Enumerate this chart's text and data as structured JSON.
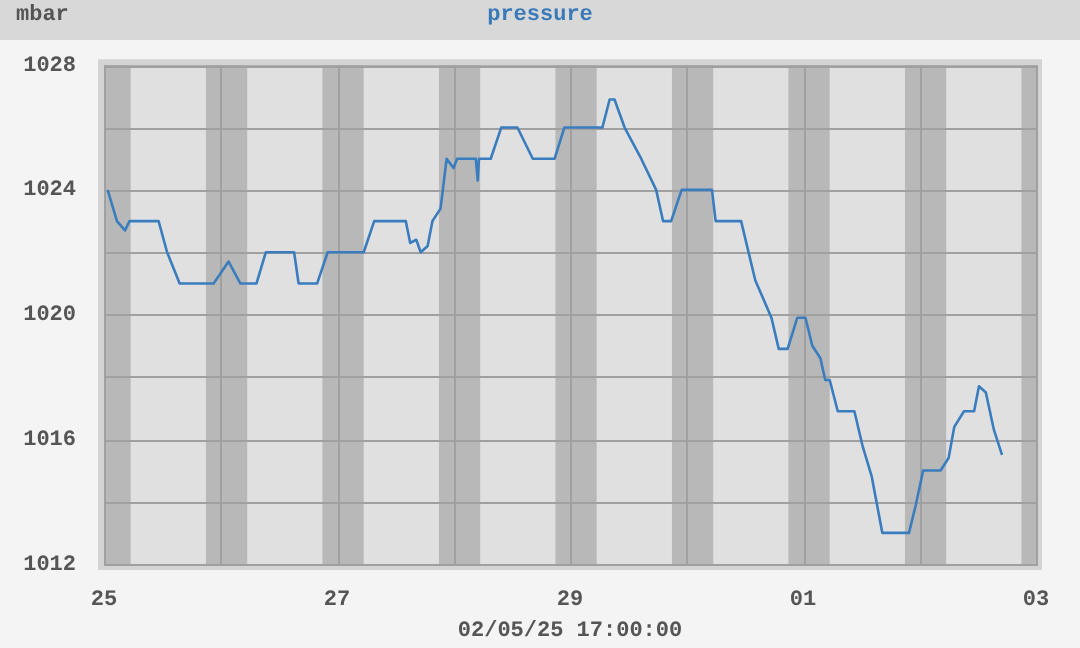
{
  "chart_data": {
    "type": "line",
    "title": "pressure",
    "ylabel": "mbar",
    "annotations": [
      "02/05/25 17:00:00"
    ],
    "legend": false,
    "marker": "none",
    "grid": true,
    "x": [
      "--04-25T00:45",
      "--04-25T02:40",
      "--04-25T04:20",
      "--04-25T05:15",
      "--04-25T11:15",
      "--04-25T13:00",
      "--04-25T15:35",
      "--04-25T22:35",
      "--04-26T01:40",
      "--04-26T04:05",
      "--04-26T07:25",
      "--04-26T09:20",
      "--04-26T15:10",
      "--04-26T16:05",
      "--04-26T19:55",
      "--04-26T22:05",
      "--04-27T05:30",
      "--04-27T07:40",
      "--04-27T14:10",
      "--04-27T15:05",
      "--04-27T16:20",
      "--04-27T17:15",
      "--04-27T18:40",
      "--04-27T19:40",
      "--04-27T21:20",
      "--04-27T22:35",
      "--04-28T00:00",
      "--04-28T00:45",
      "--04-28T04:35",
      "--04-28T05:00",
      "--04-28T05:15",
      "--04-28T07:40",
      "--04-28T09:50",
      "--04-28T13:10",
      "--04-28T16:20",
      "--04-28T20:50",
      "--04-28T22:50",
      "--04-29T06:40",
      "--04-29T08:10",
      "--04-29T09:10",
      "--04-29T11:15",
      "--04-29T14:40",
      "--04-29T17:45",
      "--04-29T19:10",
      "--04-29T20:50",
      "--04-29T23:00",
      "--04-30T05:15",
      "--04-30T06:00",
      "--04-30T11:15",
      "--04-30T14:10",
      "--04-30T17:30",
      "--04-30T19:00",
      "--04-30T20:50",
      "--04-30T22:50",
      "--05-01T00:30",
      "--05-01T01:55",
      "--05-01T03:35",
      "--05-01T04:35",
      "--05-01T05:30",
      "--05-01T07:10",
      "--05-01T10:35",
      "--05-01T12:15",
      "--05-01T14:10",
      "--05-01T16:20",
      "--05-01T21:50",
      "--05-01T23:15",
      "--05-02T00:45",
      "--05-02T04:20",
      "--05-02T06:00",
      "--05-02T07:10",
      "--05-02T09:10",
      "--05-02T11:15",
      "--05-02T12:15",
      "--05-02T13:40",
      "--05-02T15:20",
      "--05-02T17:00"
    ],
    "series": [
      {
        "color": "#3a7dbf",
        "values": [
          1024,
          1023,
          1022.7,
          1023,
          1023,
          1022,
          1021,
          1021,
          1021.7,
          1021,
          1021,
          1022,
          1022,
          1021,
          1021,
          1022,
          1022,
          1023,
          1023,
          1022.3,
          1022.4,
          1022,
          1022.2,
          1023,
          1023.4,
          1025,
          1024.7,
          1025,
          1025,
          1024.3,
          1025,
          1025,
          1026,
          1026,
          1025,
          1025,
          1026,
          1026,
          1026.9,
          1026.9,
          1026,
          1025,
          1024,
          1023,
          1023,
          1024,
          1024,
          1023,
          1023,
          1021.1,
          1019.9,
          1018.9,
          1018.9,
          1019.9,
          1019.9,
          1019,
          1018.6,
          1017.9,
          1017.9,
          1016.9,
          1016.9,
          1015.8,
          1014.8,
          1013,
          1013,
          1013.9,
          1015,
          1015,
          1015.4,
          1016.4,
          1016.9,
          1016.9,
          1017.7,
          1017.5,
          1016.3,
          1015.5
        ]
      }
    ],
    "xlim": [
      "--04-25",
      "--05-03"
    ],
    "xticks": [
      {
        "value": "--04-25",
        "label": "25"
      },
      {
        "value": "--04-26",
        "label": null
      },
      {
        "value": "--04-27",
        "label": "27"
      },
      {
        "value": "--04-28",
        "label": null
      },
      {
        "value": "--04-29",
        "label": "29"
      },
      {
        "value": "--04-30",
        "label": null
      },
      {
        "value": "--05-01",
        "label": "01"
      },
      {
        "value": "--05-02",
        "label": null
      },
      {
        "value": "--05-03",
        "label": "03"
      }
    ],
    "ylim": [
      1012,
      1028
    ],
    "yticks": [
      1012,
      {
        "value": 1014,
        "label": null
      },
      1016,
      {
        "value": 1018,
        "label": null
      },
      1020,
      {
        "value": 1022,
        "label": null
      },
      1024,
      {
        "value": 1026,
        "label": null
      },
      1028
    ],
    "bands": [
      {
        "axis": "x",
        "from": "--04-25T00:00",
        "to": "--04-25T05:30",
        "color": "#b8b8b8"
      },
      {
        "axis": "x",
        "from": "--04-25T21:00",
        "to": "--04-26T05:30",
        "color": "#b8b8b8"
      },
      {
        "axis": "x",
        "from": "--04-26T21:00",
        "to": "--04-27T05:30",
        "color": "#b8b8b8"
      },
      {
        "axis": "x",
        "from": "--04-27T21:00",
        "to": "--04-28T05:30",
        "color": "#b8b8b8"
      },
      {
        "axis": "x",
        "from": "--04-28T21:00",
        "to": "--04-29T05:30",
        "color": "#b8b8b8"
      },
      {
        "axis": "x",
        "from": "--04-29T21:00",
        "to": "--04-30T05:30",
        "color": "#b8b8b8"
      },
      {
        "axis": "x",
        "from": "--04-30T21:00",
        "to": "--05-01T05:30",
        "color": "#b8b8b8"
      },
      {
        "axis": "x",
        "from": "--05-01T21:00",
        "to": "--05-02T05:30",
        "color": "#b8b8b8"
      },
      {
        "axis": "x",
        "from": "--05-02T21:00",
        "to": "--05-03T00:00",
        "color": "#b8b8b8"
      }
    ]
  }
}
